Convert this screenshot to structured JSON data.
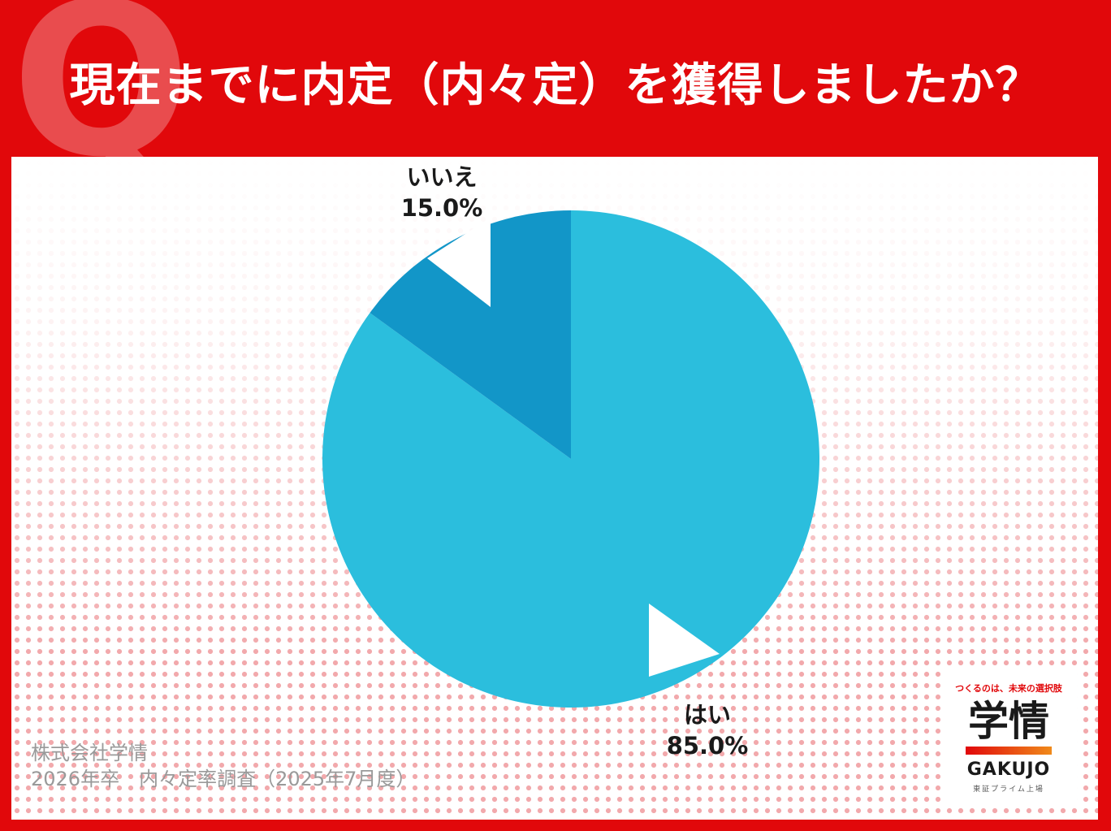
{
  "title": "現在までに内定（内々定）を獲得しましたか？",
  "q_mark": "Q",
  "chart_data": {
    "type": "pie",
    "categories": [
      "はい",
      "いいえ"
    ],
    "values": [
      85.0,
      15.0
    ],
    "value_labels": [
      "85.0%",
      "15.0%"
    ],
    "colors": [
      "#2bbedd",
      "#1296c8"
    ],
    "start": "12 o'clock, clockwise"
  },
  "source": {
    "line1": "株式会社学情",
    "line2": "2026年卒　内々定率調査（2025年7月度）"
  },
  "logo": {
    "tagline": "つくるのは、未来の選択肢",
    "main": "学情",
    "en": "GAKUJO",
    "sub": "東証プライム上場"
  }
}
